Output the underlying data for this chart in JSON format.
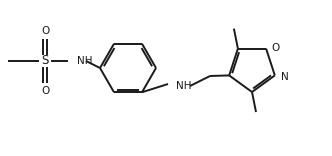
{
  "bg_color": "#ffffff",
  "bond_color": "#1a1a1a",
  "text_color": "#1a1a1a",
  "lw": 1.4,
  "fs": 7.5,
  "figsize": [
    3.32,
    1.56
  ],
  "dpi": 100,
  "xlim": [
    0,
    332
  ],
  "ylim": [
    0,
    156
  ]
}
